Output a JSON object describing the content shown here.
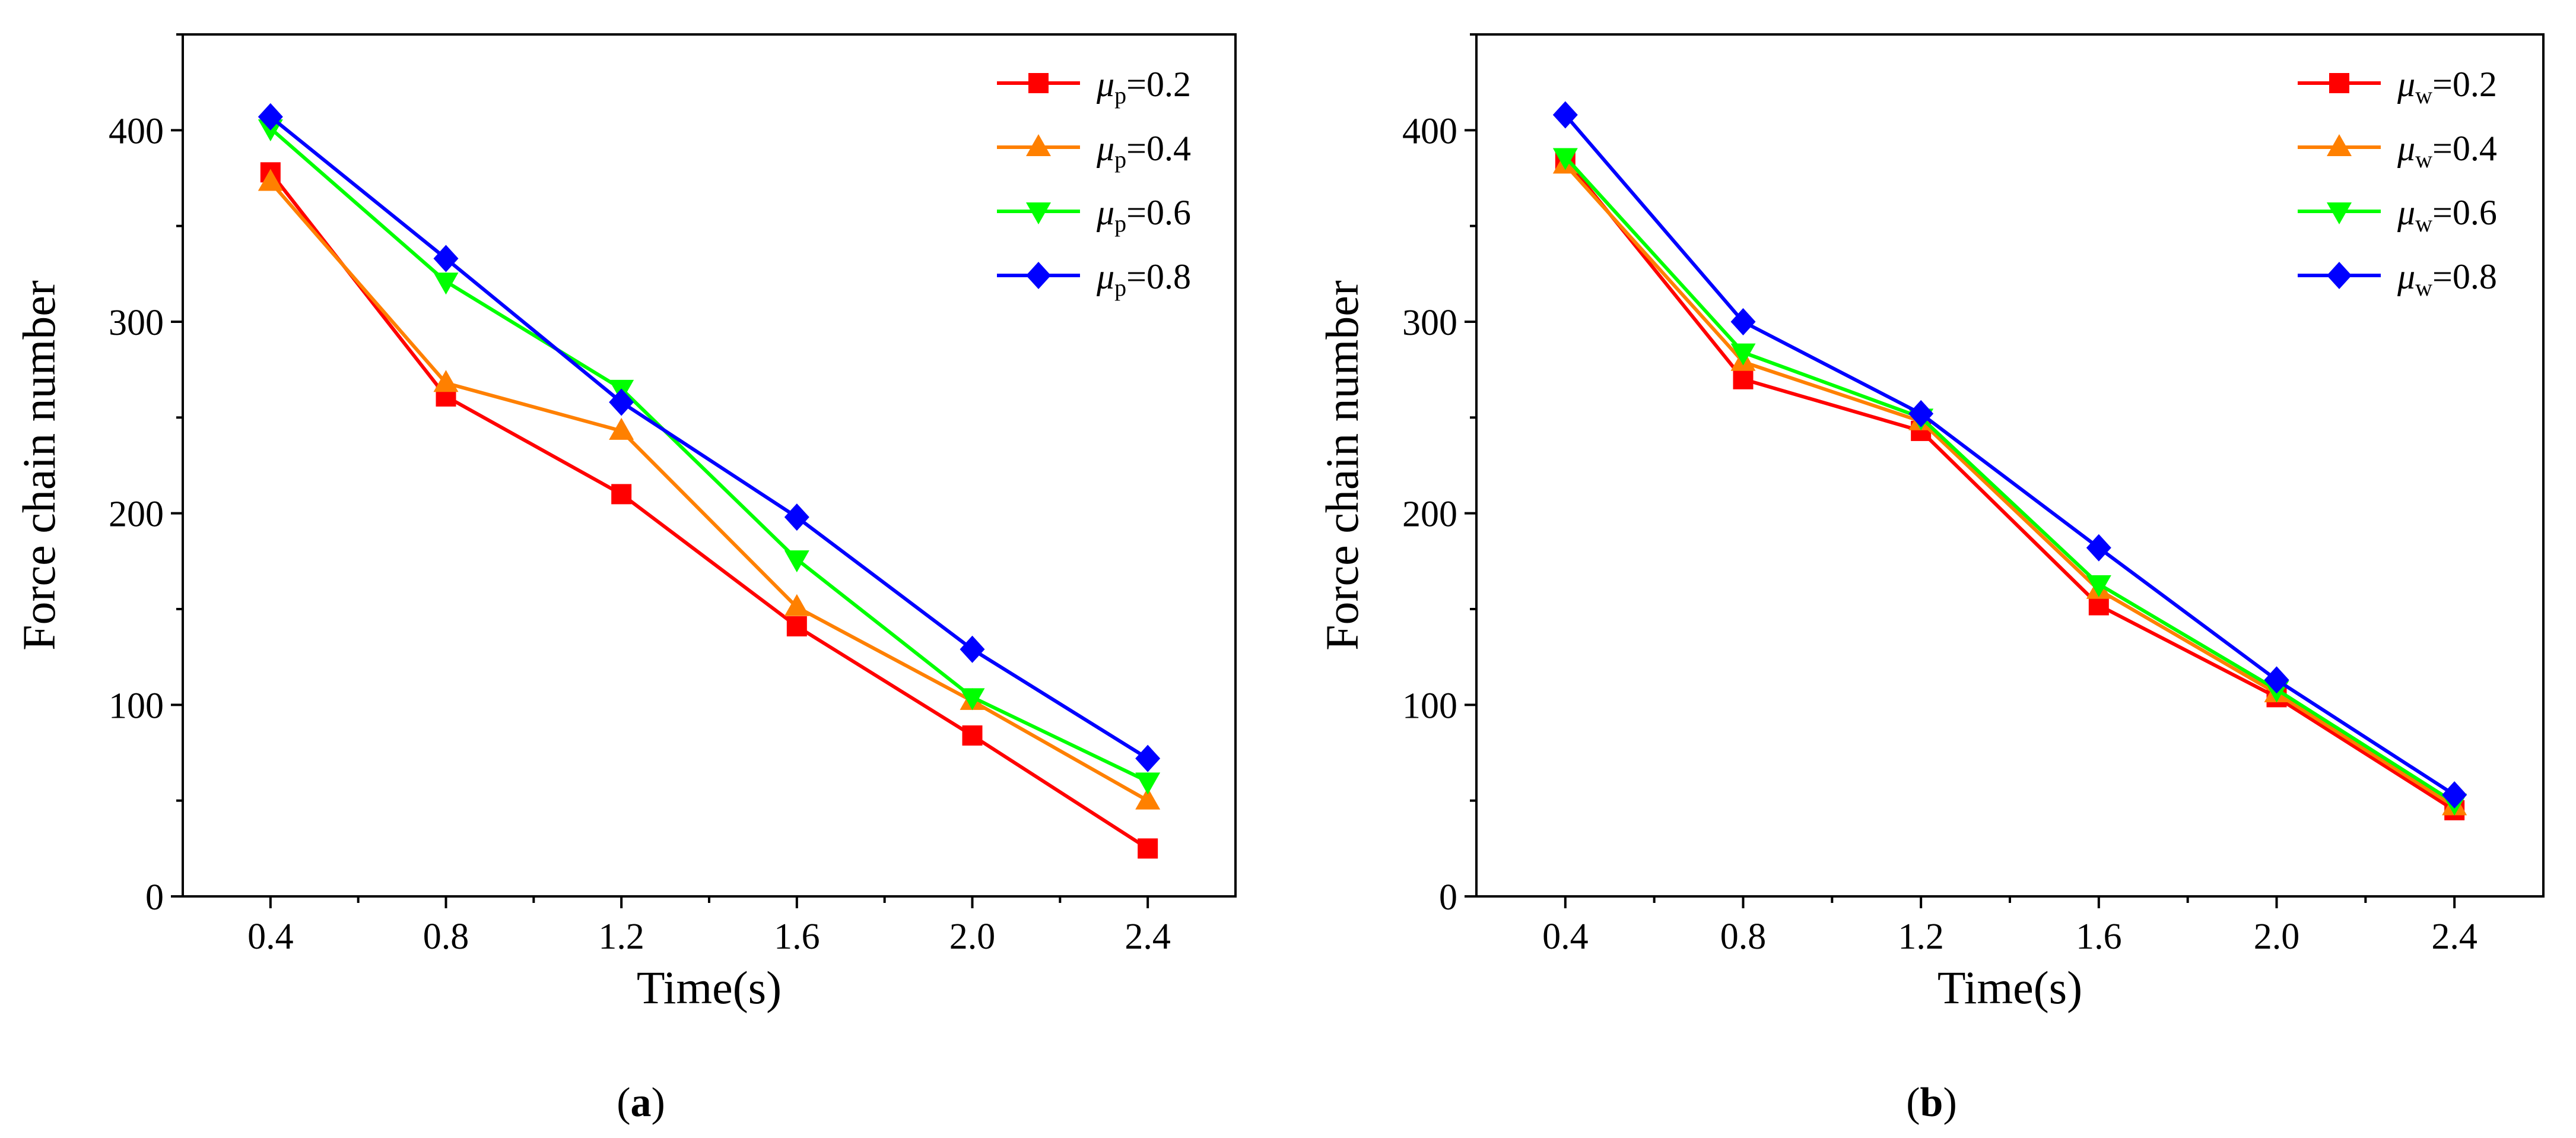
{
  "chart_data": [
    {
      "type": "line",
      "panel_label": "a",
      "xlabel": "Time(s)",
      "ylabel": "Force chain number",
      "x": [
        0.4,
        0.8,
        1.2,
        1.6,
        2.0,
        2.4
      ],
      "x_tick_labels": [
        "0.4",
        "0.8",
        "1.2",
        "1.6",
        "2.0",
        "2.4"
      ],
      "y_ticks": [
        0,
        100,
        200,
        300,
        400
      ],
      "xlim": [
        0.2,
        2.6
      ],
      "ylim": [
        0,
        450
      ],
      "legend_position": "top-right",
      "series": [
        {
          "name": "μp=0.2",
          "symbol": "μ",
          "sub": "p",
          "rest": "=0.2",
          "color": "#ff0000",
          "marker": "square",
          "values": [
            378,
            261,
            210,
            141,
            84,
            25
          ]
        },
        {
          "name": "μp=0.4",
          "symbol": "μ",
          "sub": "p",
          "rest": "=0.4",
          "color": "#ff8000",
          "marker": "triangle-up",
          "values": [
            373,
            268,
            243,
            151,
            102,
            50
          ]
        },
        {
          "name": "μp=0.6",
          "symbol": "μ",
          "sub": "p",
          "rest": "=0.6",
          "color": "#00ff00",
          "marker": "triangle-down",
          "values": [
            401,
            321,
            265,
            176,
            104,
            60
          ]
        },
        {
          "name": "μp=0.8",
          "symbol": "μ",
          "sub": "p",
          "rest": "=0.8",
          "color": "#0000ff",
          "marker": "diamond",
          "values": [
            407,
            333,
            258,
            198,
            129,
            72
          ]
        }
      ]
    },
    {
      "type": "line",
      "panel_label": "b",
      "xlabel": "Time(s)",
      "ylabel": "Force chain number",
      "x": [
        0.4,
        0.8,
        1.2,
        1.6,
        2.0,
        2.4
      ],
      "x_tick_labels": [
        "0.4",
        "0.8",
        "1.2",
        "1.6",
        "2.0",
        "2.4"
      ],
      "y_ticks": [
        0,
        100,
        200,
        300,
        400
      ],
      "xlim": [
        0.2,
        2.6
      ],
      "ylim": [
        0,
        450
      ],
      "legend_position": "top-right",
      "series": [
        {
          "name": "μw=0.2",
          "symbol": "μ",
          "sub": "w",
          "rest": "=0.2",
          "color": "#ff0000",
          "marker": "square",
          "values": [
            385,
            270,
            243,
            152,
            104,
            45
          ]
        },
        {
          "name": "μw=0.4",
          "symbol": "μ",
          "sub": "w",
          "rest": "=0.4",
          "color": "#ff8000",
          "marker": "triangle-up",
          "values": [
            382,
            279,
            248,
            160,
            106,
            47
          ]
        },
        {
          "name": "μw=0.6",
          "symbol": "μ",
          "sub": "w",
          "rest": "=0.6",
          "color": "#00ff00",
          "marker": "triangle-down",
          "values": [
            386,
            284,
            250,
            163,
            108,
            49
          ]
        },
        {
          "name": "μw=0.8",
          "symbol": "μ",
          "sub": "w",
          "rest": "=0.8",
          "color": "#0000ff",
          "marker": "diamond",
          "values": [
            408,
            300,
            252,
            182,
            113,
            53
          ]
        }
      ]
    }
  ]
}
